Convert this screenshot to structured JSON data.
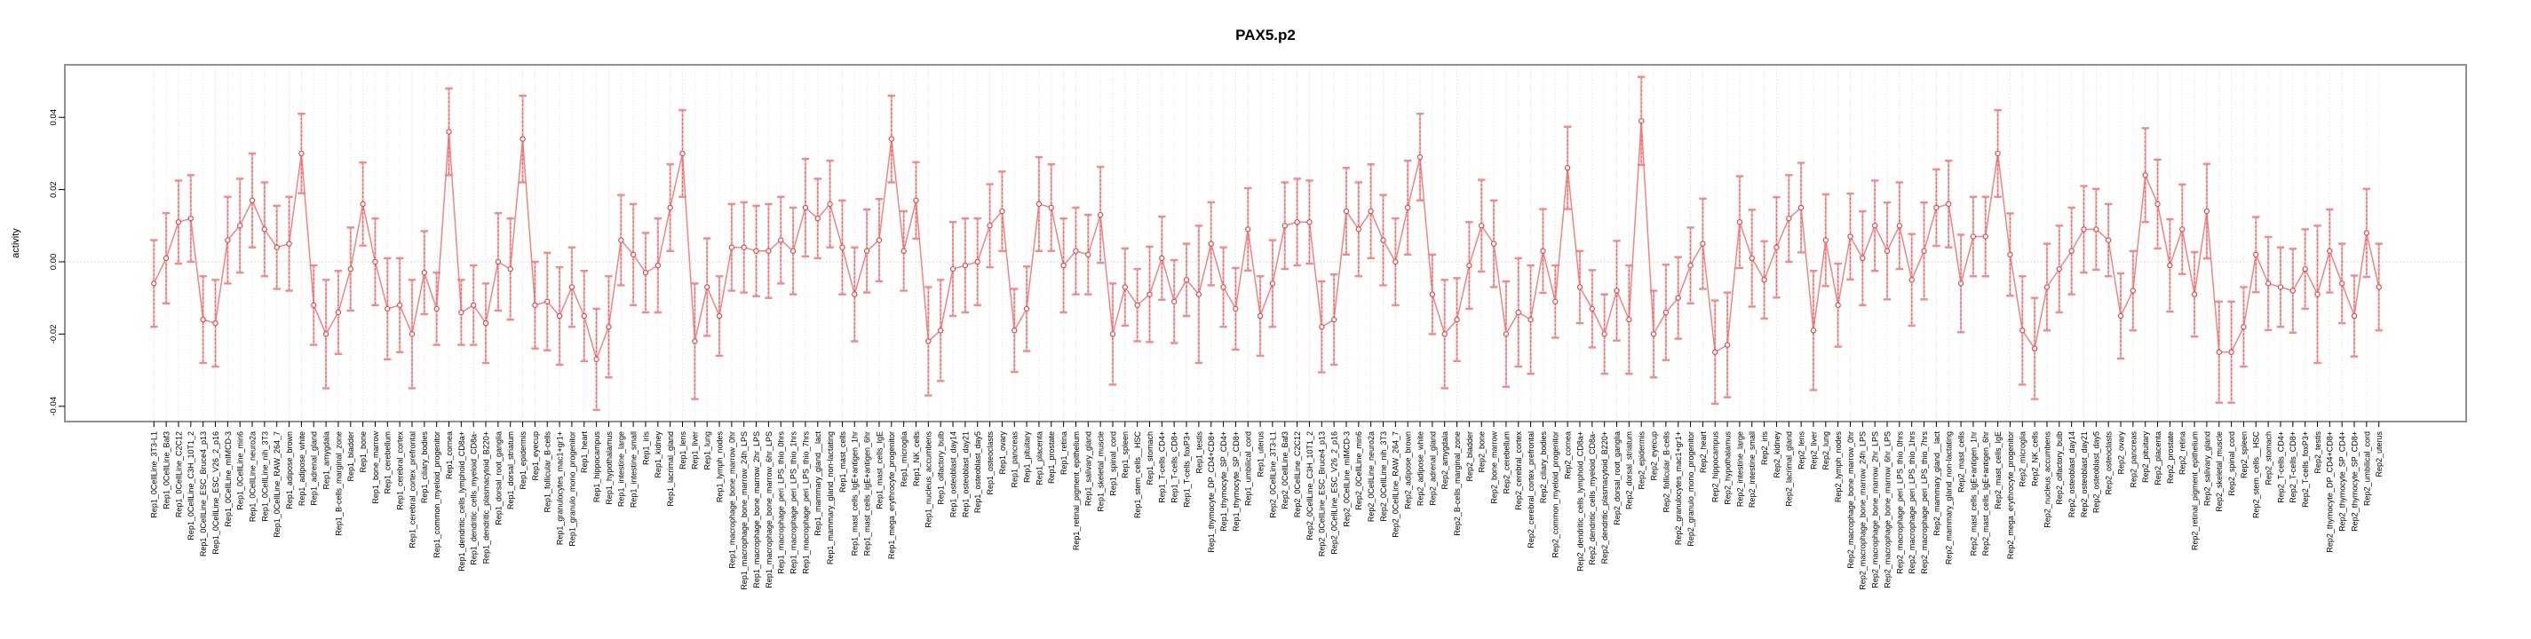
{
  "title": "PAX5.p2",
  "chart_data": {
    "type": "line",
    "subtype": "point-errorbar-series",
    "title": "PAX5.p2",
    "xlabel": "",
    "ylabel": "activity",
    "ylim": [
      -0.05,
      0.055
    ],
    "grid": "vertical-dotted-per-category-plus-zero-line",
    "legend": "none",
    "y_ticks": [
      {
        "value": 0.04,
        "label": "0.04"
      },
      {
        "value": 0.02,
        "label": "0.02"
      },
      {
        "value": 0.0,
        "label": "0.00"
      },
      {
        "value": -0.02,
        "label": "-0.02"
      },
      {
        "value": -0.04,
        "label": "-0.04"
      }
    ],
    "colors": {
      "point_stroke": "#dd4b4b",
      "errorbar_light": "#f5a3a3",
      "errorbar_cap": "#f08b8b",
      "errorbar_dash": "#e05252",
      "series_line": "#ef6f6f",
      "grid": "#dcdcdc",
      "zero_line": "#cfcfcf",
      "box": "#858585"
    },
    "categories": [
      "Rep1_0CellLine_3T3-L1",
      "Rep1_0CellLine_Baf3",
      "Rep1_0CellLine_C2C12",
      "Rep1_0CellLine_C3H_10T1_2",
      "Rep1_0CellLine_ESC_Bruce4_p13",
      "Rep1_0CellLine_ESC_V26_2_p16",
      "Rep1_0CellLine_mIMCD-3",
      "Rep1_0CellLine_min6",
      "Rep1_0CellLine_neuro2a",
      "Rep1_0CellLine_nih_3T3",
      "Rep1_0CellLine_RAW_264_7",
      "Rep1_adipose_brown",
      "Rep1_adipose_white",
      "Rep1_adrenal_gland",
      "Rep1_amygdala",
      "Rep1_B-cells_marginal_zone",
      "Rep1_bladder",
      "Rep1_bone",
      "Rep1_bone_marrow",
      "Rep1_cerebellum",
      "Rep1_cerebral_cortex",
      "Rep1_cerebral_cortex_prefrontal",
      "Rep1_ciliary_bodies",
      "Rep1_common_myeloid_progenitor",
      "Rep1_cornea",
      "Rep1_dendritic_cells_lymphoid_CD8a+",
      "Rep1_dendritic_cells_myeloid_CD8a-",
      "Rep1_dendritic_plasmacytoid_B220+",
      "Rep1_dorsal_root_ganglia",
      "Rep1_dorsal_striatum",
      "Rep1_epidermis",
      "Rep1_eyecup",
      "Rep1_follicular_B-cells",
      "Rep1_granulocytes_mac1+gr1+",
      "Rep1_granulo_mono_progenitor",
      "Rep1_heart",
      "Rep1_hippocampus",
      "Rep1_hypothalamus",
      "Rep1_intestine_large",
      "Rep1_intestine_small",
      "Rep1_iris",
      "Rep1_kidney",
      "Rep1_lacrimal_gland",
      "Rep1_lens",
      "Rep1_liver",
      "Rep1_lung",
      "Rep1_lymph_nodes",
      "Rep1_macrophage_bone_marrow_0hr",
      "Rep1_macrophage_bone_marrow_24h_LPS",
      "Rep1_macrophage_bone_marrow_2hr_LPS",
      "Rep1_macrophage_bone_marrow_6hr_LPS",
      "Rep1_macrophage_peri_LPS_thio_0hrs",
      "Rep1_macrophage_peri_LPS_thio_1hrs",
      "Rep1_macrophage_peri_LPS_thio_7hrs",
      "Rep1_mammary_gland__lact",
      "Rep1_mammary_gland_non-lactating",
      "Rep1_mast_cells",
      "Rep1_mast_cells_IgE+antigen_1hr",
      "Rep1_mast_cells_IgE+antigen_6hr",
      "Rep1_mast_cells_IgE",
      "Rep1_mega_erythrocyte_progenitor",
      "Rep1_microglia",
      "Rep1_NK_cells",
      "Rep1_nucleus_accumbens",
      "Rep1_olfactory_bulb",
      "Rep1_osteoblast_day14",
      "Rep1_osteoblast_day21",
      "Rep1_osteoblast_day5",
      "Rep1_osteoclasts",
      "Rep1_ovary",
      "Rep1_pancreas",
      "Rep1_pituitary",
      "Rep1_placenta",
      "Rep1_prostate",
      "Rep1_retina",
      "Rep1_retinal_pigment_epithelium",
      "Rep1_salivary_gland",
      "Rep1_skeletal_muscle",
      "Rep1_spinal_cord",
      "Rep1_spleen",
      "Rep1_stem_cells__HSC",
      "Rep1_stomach",
      "Rep1_T-cells_CD4+",
      "Rep1_T-cells_CD8+",
      "Rep1_T-cells_foxP3+",
      "Rep1_testis",
      "Rep1_thymocyte_DP_CD4+CD8+",
      "Rep1_thymocyte_SP_CD4+",
      "Rep1_thymocyte_SP_CD8+",
      "Rep1_umbilical_cord",
      "Rep1_uterus",
      "Rep2_0CellLine_3T3-L1",
      "Rep2_0CellLine_Baf3",
      "Rep2_0CellLine_C2C12",
      "Rep2_0CellLine_C3H_10T1_2",
      "Rep2_0CellLine_ESC_Bruce4_p13",
      "Rep2_0CellLine_ESC_V26_2_p16",
      "Rep2_0CellLine_mIMCD-3",
      "Rep2_0CellLine_min6",
      "Rep2_0CellLine_neuro2a",
      "Rep2_0CellLine_nih_3T3",
      "Rep2_0CellLine_RAW_264_7",
      "Rep2_adipose_brown",
      "Rep2_adipose_white",
      "Rep2_adrenal_gland",
      "Rep2_amygdala",
      "Rep2_B-cells_marginal_zone",
      "Rep2_bladder",
      "Rep2_bone",
      "Rep2_bone_marrow",
      "Rep2_cerebellum",
      "Rep2_cerebral_cortex",
      "Rep2_cerebral_cortex_prefrontal",
      "Rep2_ciliary_bodies",
      "Rep2_common_myeloid_progenitor",
      "Rep2_cornea",
      "Rep2_dendritic_cells_lymphoid_CD8a+",
      "Rep2_dendritic_cells_myeloid_CD8a-",
      "Rep2_dendritic_plasmacytoid_B220+",
      "Rep2_dorsal_root_ganglia",
      "Rep2_dorsal_striatum",
      "Rep2_epidermis",
      "Rep2_eyecup",
      "Rep2_follicular_B-cells",
      "Rep2_granulocytes_mac1+gr1+",
      "Rep2_granulo_mono_progenitor",
      "Rep2_heart",
      "Rep2_hippocampus",
      "Rep2_hypothalamus",
      "Rep2_intestine_large",
      "Rep2_intestine_small",
      "Rep2_iris",
      "Rep2_kidney",
      "Rep2_lacrimal_gland",
      "Rep2_lens",
      "Rep2_liver",
      "Rep2_lung",
      "Rep2_lymph_nodes",
      "Rep2_macrophage_bone_marrow_0hr",
      "Rep2_macrophage_bone_marrow_24h_LPS",
      "Rep2_macrophage_bone_marrow_2hr_LPS",
      "Rep2_macrophage_bone_marrow_6hr_LPS",
      "Rep2_macrophage_peri_LPS_thio_0hrs",
      "Rep2_macrophage_peri_LPS_thio_1hrs",
      "Rep2_macrophage_peri_LPS_thio_7hrs",
      "Rep2_mammary_gland__lact",
      "Rep2_mammary_gland_non-lactating",
      "Rep2_mast_cells",
      "Rep2_mast_cells_IgE+antigen_1hr",
      "Rep2_mast_cells_IgE+antigen_6hr",
      "Rep2_mast_cells_IgE",
      "Rep2_mega_erythrocyte_progenitor",
      "Rep2_microglia",
      "Rep2_NK_cells",
      "Rep2_nucleus_accumbens",
      "Rep2_olfactory_bulb",
      "Rep2_osteoblast_day14",
      "Rep2_osteoblast_day21",
      "Rep2_osteoblast_day5",
      "Rep2_osteoclasts",
      "Rep2_ovary",
      "Rep2_pancreas",
      "Rep2_pituitary",
      "Rep2_placenta",
      "Rep2_prostate",
      "Rep2_retina",
      "Rep2_retinal_pigment_epithelium",
      "Rep2_salivary_gland",
      "Rep2_skeletal_muscle",
      "Rep2_spinal_cord",
      "Rep2_spleen",
      "Rep2_stem_cells__HSC",
      "Rep2_stomach",
      "Rep2_T-cells_CD4+",
      "Rep2_T-cells_CD8+",
      "Rep2_T-cells_foxP3+",
      "Rep2_testis",
      "Rep2_thymocyte_DP_CD4+CD8+",
      "Rep2_thymocyte_SP_CD4+",
      "Rep2_thymocyte_SP_CD8+",
      "Rep2_umbilical_cord",
      "Rep2_uterus"
    ],
    "series": [
      {
        "name": "activity",
        "values": [
          -0.006,
          0.001,
          0.011,
          0.012,
          -0.016,
          -0.017,
          0.006,
          0.01,
          0.017,
          0.009,
          0.004,
          0.005,
          0.03,
          -0.012,
          -0.02,
          -0.014,
          -0.002,
          0.016,
          0.0,
          -0.013,
          -0.012,
          -0.02,
          -0.003,
          -0.013,
          0.036,
          -0.014,
          -0.012,
          -0.017,
          0.0,
          -0.002,
          0.034,
          -0.012,
          -0.011,
          -0.015,
          -0.007,
          -0.015,
          -0.027,
          -0.018,
          0.006,
          0.002,
          -0.003,
          -0.001,
          0.015,
          0.03,
          -0.022,
          -0.007,
          -0.015,
          0.004,
          0.004,
          0.003,
          0.003,
          0.006,
          0.003,
          0.015,
          0.012,
          0.016,
          0.004,
          -0.009,
          0.003,
          0.006,
          0.034,
          0.003,
          0.017,
          -0.022,
          -0.019,
          -0.002,
          -0.001,
          0.0,
          0.01,
          0.014,
          -0.019,
          -0.013,
          0.016,
          0.015,
          -0.001,
          0.003,
          0.002,
          0.013,
          -0.02,
          -0.007,
          -0.012,
          -0.009,
          0.001,
          -0.011,
          -0.005,
          -0.009,
          0.005,
          -0.007,
          -0.013,
          0.009,
          -0.015,
          -0.006,
          0.01,
          0.011,
          0.011,
          -0.018,
          -0.016,
          0.014,
          0.009,
          0.014,
          0.006,
          0.0,
          0.015,
          0.029,
          -0.009,
          -0.02,
          -0.016,
          -0.001,
          0.01,
          0.005,
          -0.02,
          -0.014,
          -0.016,
          0.003,
          -0.011,
          0.026,
          -0.007,
          -0.013,
          -0.02,
          -0.008,
          -0.016,
          0.039,
          -0.02,
          -0.014,
          -0.01,
          -0.001,
          0.005,
          -0.025,
          -0.023,
          0.011,
          0.001,
          -0.005,
          0.004,
          0.012,
          0.015,
          -0.019,
          0.006,
          -0.012,
          0.007,
          0.001,
          0.01,
          0.003,
          0.01,
          -0.005,
          0.003,
          0.015,
          0.016,
          -0.006,
          0.007,
          0.007,
          0.03,
          0.002,
          -0.019,
          -0.024,
          -0.007,
          -0.002,
          0.003,
          0.009,
          0.009,
          0.006,
          -0.015,
          -0.008,
          0.024,
          0.016,
          -0.001,
          0.009,
          -0.009,
          0.014,
          -0.025,
          -0.025,
          -0.018,
          0.002,
          -0.006,
          -0.007,
          -0.008,
          -0.002,
          -0.009,
          0.003,
          -0.006,
          -0.015,
          0.008,
          -0.007
        ],
        "errors": [
          0.012,
          0.0125,
          0.0115,
          0.012,
          0.012,
          0.012,
          0.012,
          0.013,
          0.013,
          0.013,
          0.0115,
          0.013,
          0.011,
          0.011,
          0.015,
          0.0115,
          0.0115,
          0.0115,
          0.012,
          0.014,
          0.013,
          0.015,
          0.0115,
          0.01,
          0.012,
          0.009,
          0.011,
          0.011,
          0.0135,
          0.014,
          0.012,
          0.012,
          0.0135,
          0.0135,
          0.011,
          0.0125,
          0.014,
          0.014,
          0.0125,
          0.014,
          0.011,
          0.013,
          0.012,
          0.012,
          0.016,
          0.0135,
          0.011,
          0.012,
          0.0125,
          0.0125,
          0.013,
          0.012,
          0.012,
          0.0135,
          0.011,
          0.012,
          0.013,
          0.013,
          0.0115,
          0.0114,
          0.012,
          0.011,
          0.0106,
          0.015,
          0.014,
          0.013,
          0.013,
          0.012,
          0.0115,
          0.011,
          0.0115,
          0.0117,
          0.013,
          0.012,
          0.013,
          0.012,
          0.011,
          0.0133,
          0.014,
          0.0107,
          0.01,
          0.0132,
          0.0115,
          0.0115,
          0.01,
          0.019,
          0.0115,
          0.011,
          0.0113,
          0.0114,
          0.011,
          0.012,
          0.012,
          0.012,
          0.0115,
          0.0126,
          0.0125,
          0.012,
          0.013,
          0.013,
          0.0125,
          0.012,
          0.013,
          0.012,
          0.011,
          0.015,
          0.0115,
          0.012,
          0.0127,
          0.012,
          0.0146,
          0.015,
          0.015,
          0.0116,
          0.01,
          0.0114,
          0.01,
          0.0107,
          0.011,
          0.0138,
          0.015,
          0.0122,
          0.012,
          0.0132,
          0.0113,
          0.0105,
          0.0125,
          0.0143,
          0.0145,
          0.0127,
          0.0134,
          0.0107,
          0.0139,
          0.012,
          0.0124,
          0.0165,
          0.0127,
          0.0115,
          0.0119,
          0.013,
          0.0125,
          0.0134,
          0.012,
          0.0127,
          0.0134,
          0.0106,
          0.012,
          0.0135,
          0.011,
          0.011,
          0.012,
          0.0114,
          0.015,
          0.014,
          0.012,
          0.012,
          0.012,
          0.012,
          0.0112,
          0.01,
          0.0118,
          0.011,
          0.013,
          0.0123,
          0.0128,
          0.0124,
          0.0117,
          0.0131,
          0.014,
          0.014,
          0.011,
          0.0104,
          0.0129,
          0.011,
          0.0116,
          0.011,
          0.019,
          0.0115,
          0.011,
          0.0112,
          0.0122,
          0.012
        ]
      }
    ]
  }
}
